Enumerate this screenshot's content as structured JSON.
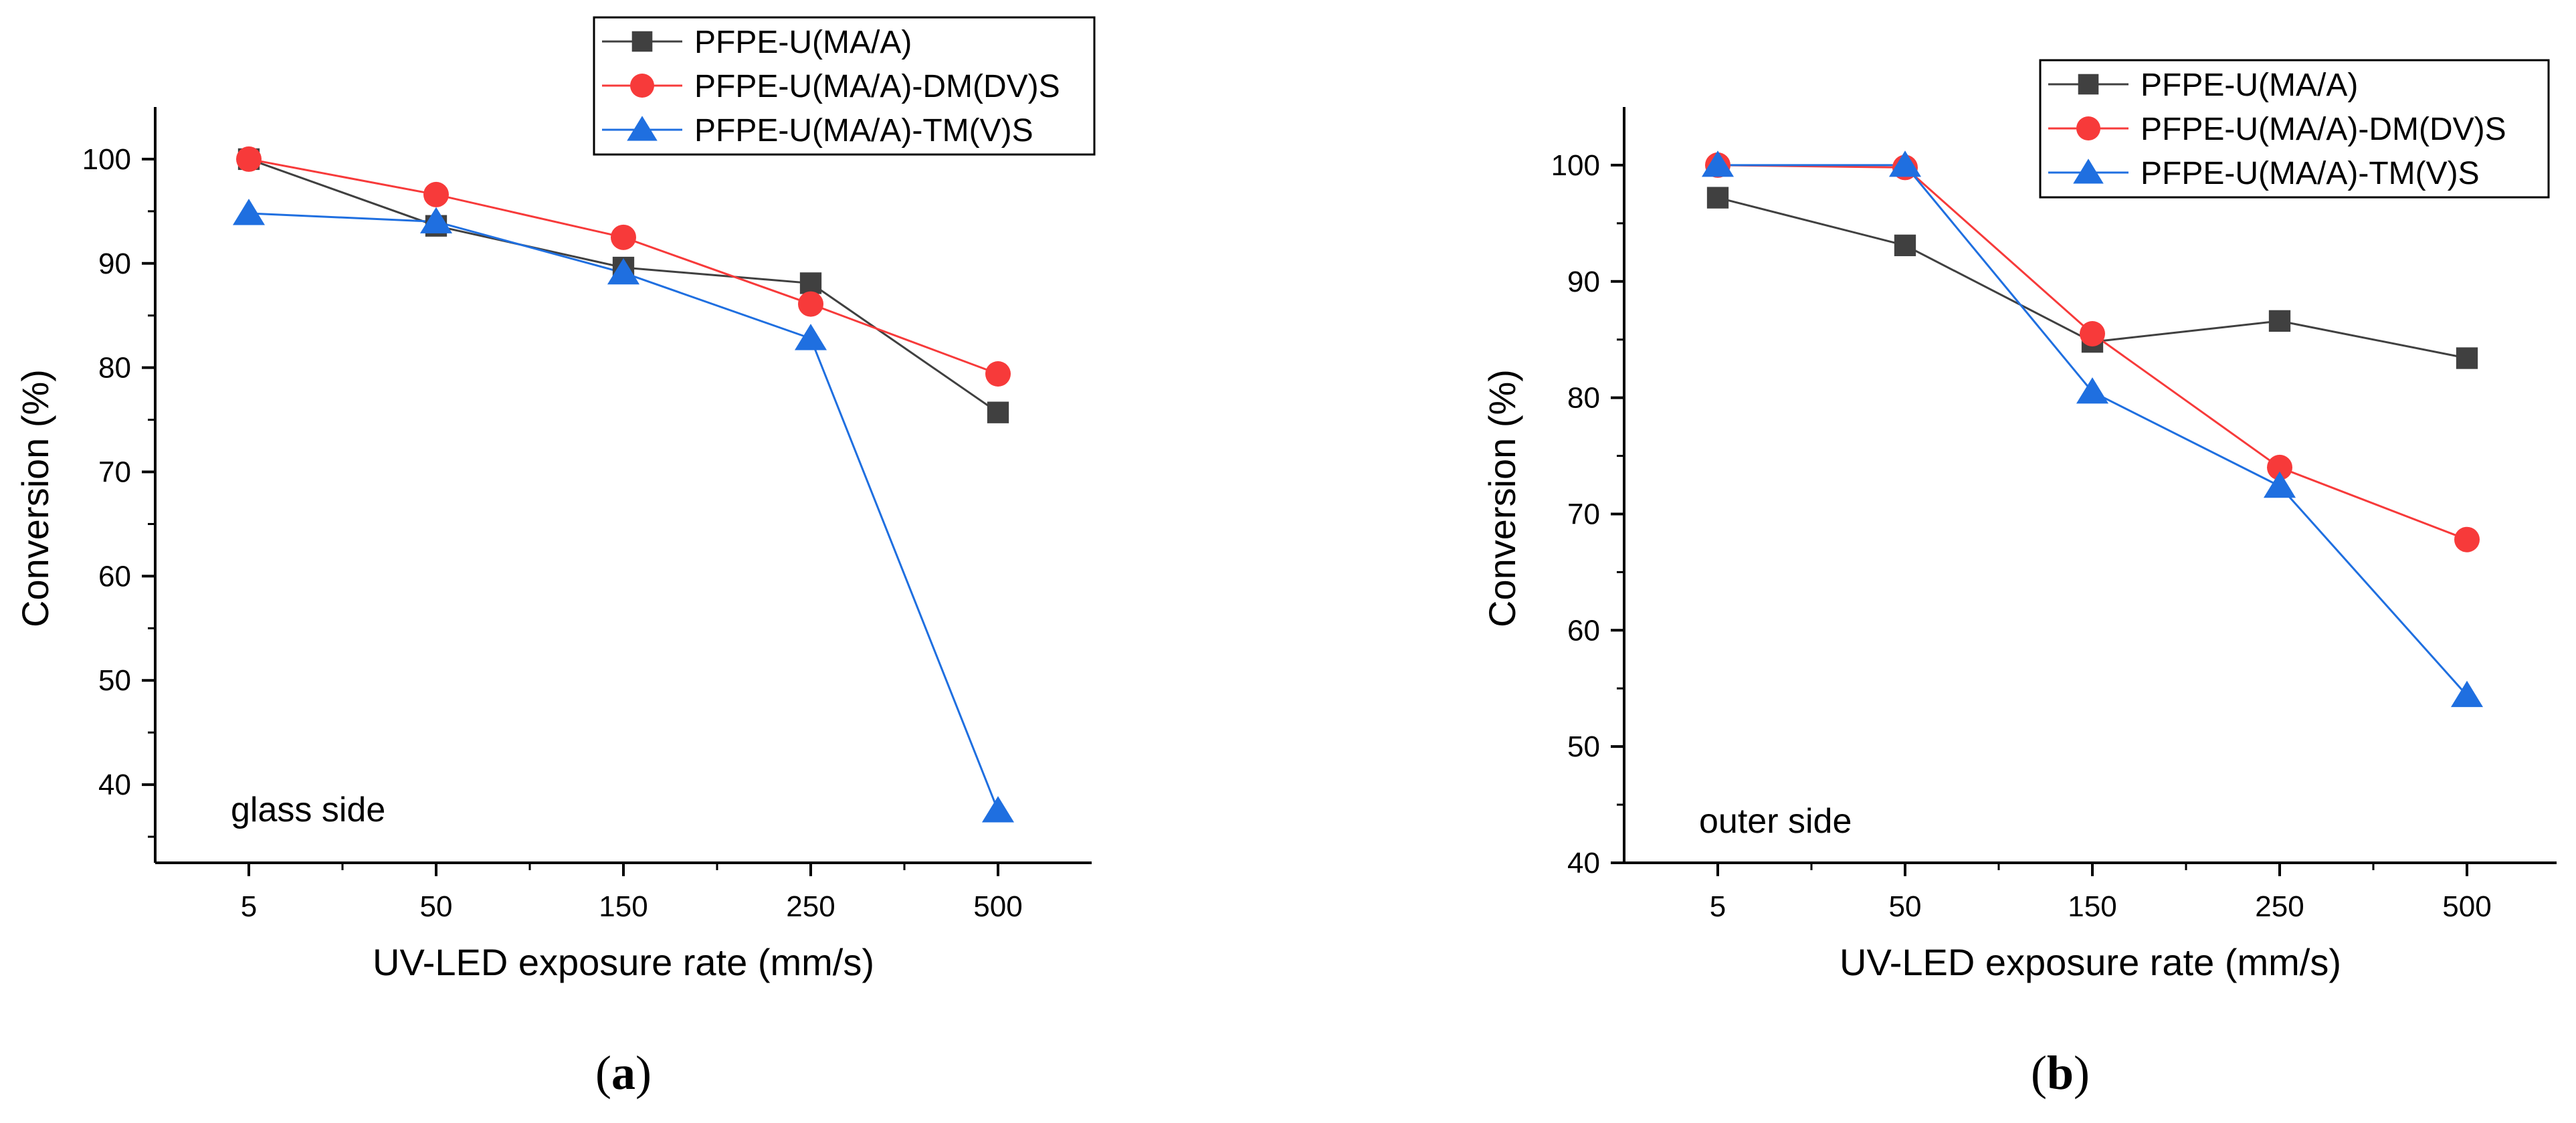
{
  "colors": {
    "series_black": "#404040",
    "series_red": "#f73a3a",
    "series_blue": "#1f6fe0",
    "axis": "#000000"
  },
  "chart_data": [
    {
      "type": "line",
      "caption": "a",
      "annotation": "glass side",
      "xlabel": "UV-LED exposure rate (mm/s)",
      "ylabel": "Conversion (%)",
      "categories": [
        "5",
        "50",
        "150",
        "250",
        "500"
      ],
      "ylim": [
        32.5,
        105
      ],
      "yticks": [
        40,
        50,
        60,
        70,
        80,
        90,
        100
      ],
      "series": [
        {
          "name": "PFPE-U(MA/A)",
          "marker": "square",
          "color": "#404040",
          "values": [
            100,
            93.6,
            89.6,
            88.1,
            75.7
          ]
        },
        {
          "name": "PFPE-U(MA/A)-DM(DV)S",
          "marker": "circle",
          "color": "#f73a3a",
          "values": [
            100,
            96.6,
            92.5,
            86.1,
            79.4
          ]
        },
        {
          "name": "PFPE-U(MA/A)-TM(V)S",
          "marker": "triangle",
          "color": "#1f6fe0",
          "values": [
            94.8,
            94.0,
            89.1,
            82.8,
            37.5
          ]
        }
      ]
    },
    {
      "type": "line",
      "caption": "b",
      "annotation": "outer side",
      "xlabel": "UV-LED exposure rate (mm/s)",
      "ylabel": "Conversion (%)",
      "categories": [
        "5",
        "50",
        "150",
        "250",
        "500"
      ],
      "ylim": [
        40,
        105
      ],
      "yticks": [
        40,
        50,
        60,
        70,
        80,
        90,
        100
      ],
      "series": [
        {
          "name": "PFPE-U(MA/A)",
          "marker": "square",
          "color": "#404040",
          "values": [
            97.2,
            93.1,
            84.8,
            86.6,
            83.4
          ]
        },
        {
          "name": "PFPE-U(MA/A)-DM(DV)S",
          "marker": "circle",
          "color": "#f73a3a",
          "values": [
            100,
            99.8,
            85.5,
            74.0,
            67.8
          ]
        },
        {
          "name": "PFPE-U(MA/A)-TM(V)S",
          "marker": "triangle",
          "color": "#1f6fe0",
          "values": [
            100,
            100,
            80.5,
            72.4,
            54.4
          ]
        }
      ]
    }
  ]
}
